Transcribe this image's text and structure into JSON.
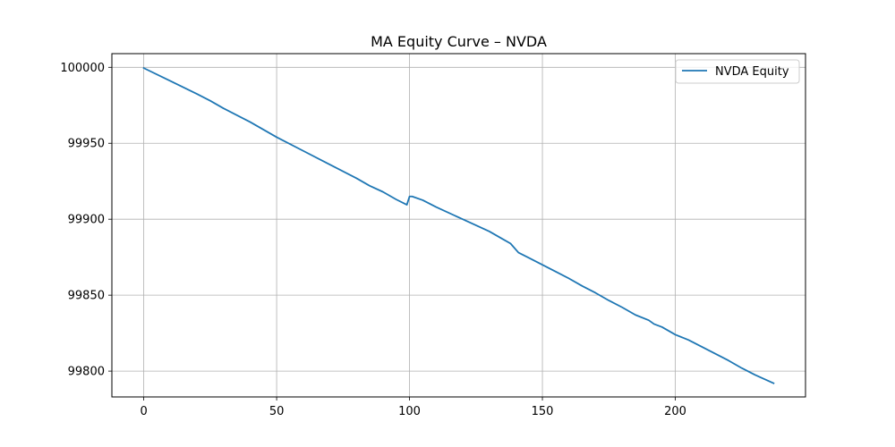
{
  "chart_data": {
    "type": "line",
    "title": "MA Equity Curve – NVDA",
    "xlabel": "",
    "ylabel": "",
    "xlim": [
      -12,
      249
    ],
    "ylim": [
      99783,
      100009
    ],
    "grid": true,
    "legend_position": "top-right",
    "x_ticks": [
      0,
      50,
      100,
      150,
      200
    ],
    "y_ticks": [
      99800,
      99850,
      99900,
      99950,
      100000
    ],
    "x_tick_labels": [
      "0",
      "50",
      "100",
      "150",
      "200"
    ],
    "y_tick_labels": [
      "99800",
      "99850",
      "99900",
      "99950",
      "100000"
    ],
    "series": [
      {
        "name": "NVDA Equity",
        "color": "#1f77b4",
        "x": [
          0,
          10,
          20,
          25,
          30,
          40,
          50,
          60,
          70,
          80,
          85,
          90,
          95,
          99,
          100,
          101,
          105,
          110,
          120,
          130,
          135,
          138,
          141,
          145,
          150,
          155,
          160,
          165,
          170,
          175,
          180,
          185,
          190,
          192,
          195,
          200,
          205,
          210,
          215,
          220,
          225,
          230,
          237
        ],
        "values": [
          99999.5,
          99991,
          99982.5,
          99978,
          99973,
          99964,
          99954,
          99945,
          99936,
          99927,
          99922,
          99918,
          99913,
          99909.5,
          99915,
          99915,
          99912.5,
          99908,
          99900,
          99892,
          99887,
          99884,
          99878,
          99874.5,
          99870,
          99865.5,
          99861,
          99856,
          99851.5,
          99846.5,
          99842,
          99837,
          99833.5,
          99831,
          99829,
          99824,
          99820.5,
          99816,
          99811.5,
          99807,
          99802,
          99797.5,
          99792
        ]
      }
    ]
  }
}
